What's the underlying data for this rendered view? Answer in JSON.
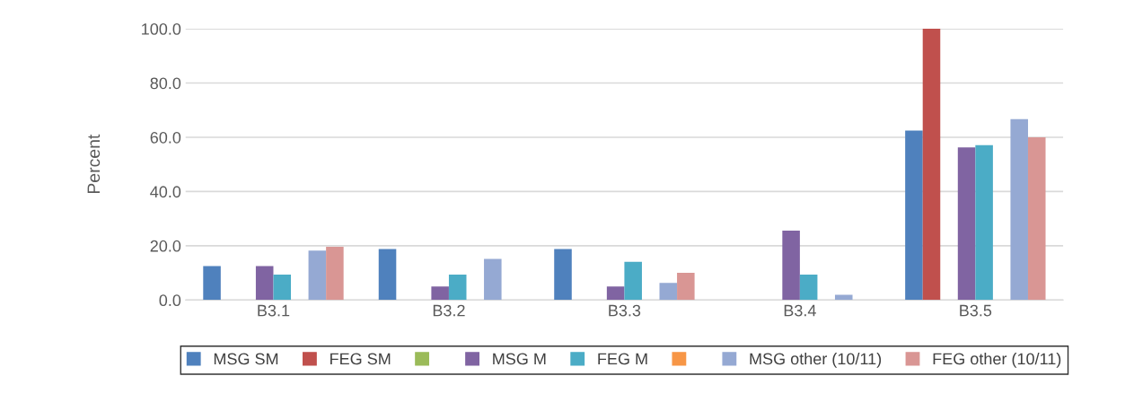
{
  "chart_data": {
    "type": "bar",
    "ylabel": "Percent",
    "categories": [
      "B3.1",
      "B3.2",
      "B3.3",
      "B3.4",
      "B3.5"
    ],
    "series": [
      {
        "name": "MSG SM",
        "color": "#4f81bd",
        "values": [
          12.5,
          18.8,
          18.8,
          0,
          62.5
        ]
      },
      {
        "name": "FEG SM",
        "color": "#c0504d",
        "values": [
          0,
          0,
          0,
          0,
          100
        ]
      },
      {
        "color": "#9bbb59",
        "values": [
          null,
          null,
          null,
          null,
          null
        ]
      },
      {
        "name": "MSG M",
        "color": "#8064a2",
        "values": [
          12.5,
          5,
          5,
          25.6,
          56.3
        ]
      },
      {
        "name": "FEG M",
        "color": "#4bacc6",
        "values": [
          9.4,
          9.4,
          14.1,
          9.4,
          57.1
        ]
      },
      {
        "color": "#f79646",
        "values": [
          null,
          null,
          null,
          null,
          null
        ]
      },
      {
        "name": "MSG other (10/11)",
        "color": "#95a9d3",
        "values": [
          18.2,
          15.2,
          6.3,
          1.9,
          66.7
        ]
      },
      {
        "name": "FEG other (10/11)",
        "color": "#d99694",
        "values": [
          19.6,
          0,
          10,
          0,
          60
        ]
      }
    ],
    "ylim": [
      0,
      100
    ],
    "yticks": [
      {
        "value": 0,
        "label": "0.0"
      },
      {
        "value": 20,
        "label": "20.0"
      },
      {
        "value": 40,
        "label": "40.0"
      },
      {
        "value": 60,
        "label": "60.0"
      },
      {
        "value": 80,
        "label": "80.0"
      },
      {
        "value": 100,
        "label": "100.0"
      }
    ],
    "grid": "y",
    "legend": "bottom"
  }
}
